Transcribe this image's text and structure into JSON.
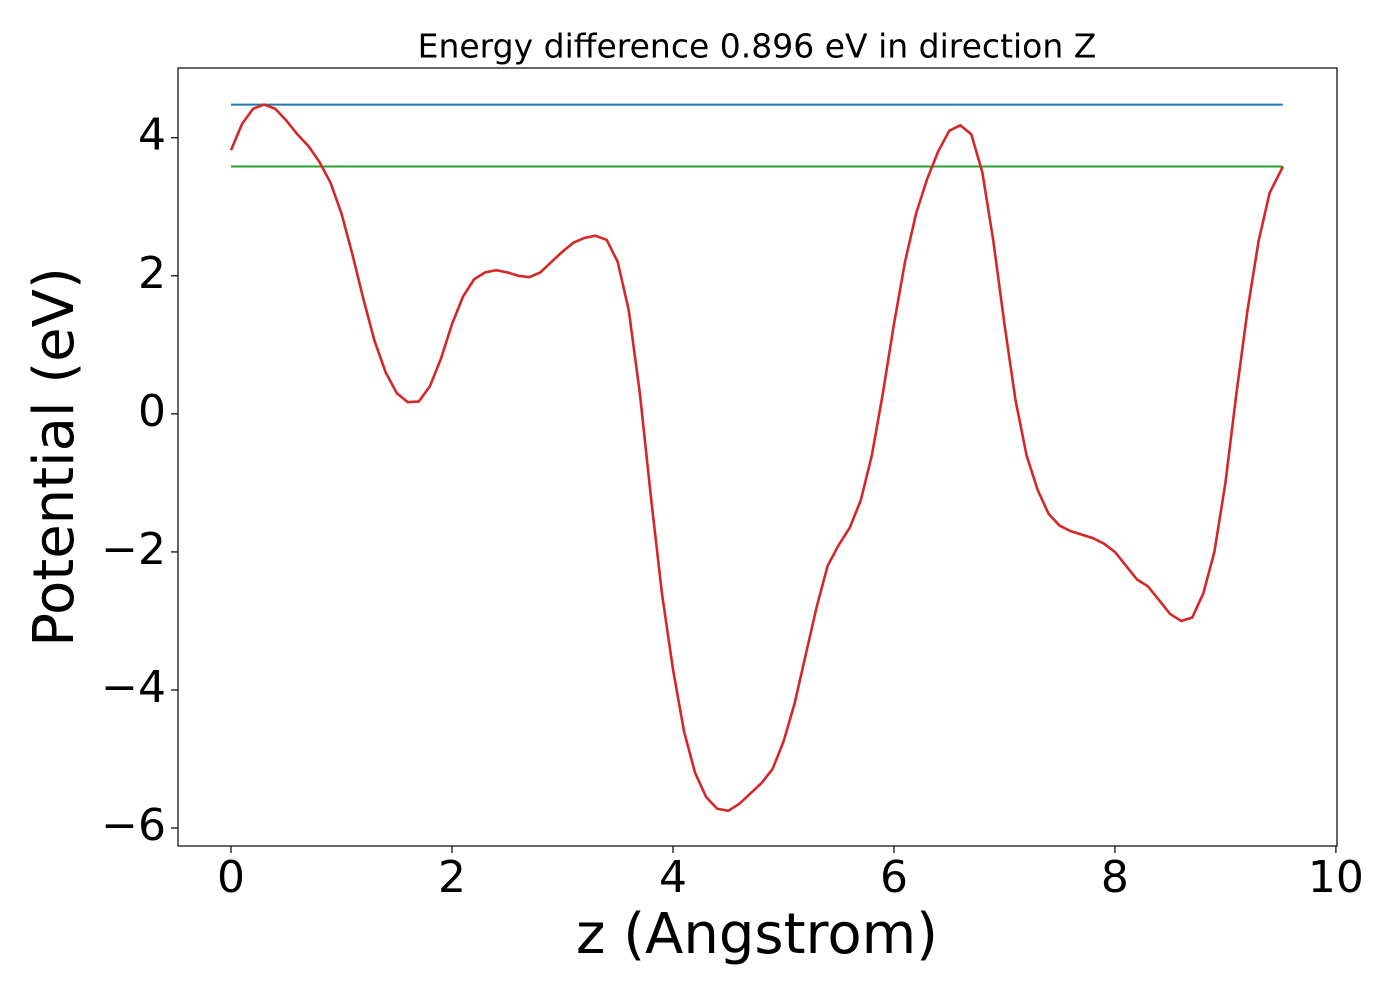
{
  "chart_data": {
    "type": "line",
    "title": "Energy difference 0.896 eV in direction Z",
    "x_label": "z (Angstrom)",
    "y_label": "Potential (eV)",
    "xlim": [
      -0.48,
      10.01
    ],
    "ylim": [
      -6.26,
      5.01
    ],
    "xticks": [
      0,
      2,
      4,
      6,
      8,
      10
    ],
    "yticks": [
      {
        "value": -6,
        "label": "−6"
      },
      {
        "value": -4,
        "label": "−4"
      },
      {
        "value": -2,
        "label": "−2"
      },
      0,
      2,
      4
    ],
    "series": [
      {
        "color": "#1f77b4",
        "x": [
          0,
          9.52
        ],
        "values": [
          4.48,
          4.48
        ]
      },
      {
        "color": "#2ca02c",
        "x": [
          0,
          9.52
        ],
        "values": [
          3.584,
          3.584
        ]
      },
      {
        "color": "#d62728",
        "x": [
          0,
          0.1,
          0.2,
          0.3,
          0.4,
          0.5,
          0.6,
          0.7,
          0.8,
          0.9,
          1.0,
          1.1,
          1.2,
          1.3,
          1.4,
          1.5,
          1.6,
          1.7,
          1.8,
          1.9,
          2.0,
          2.1,
          2.2,
          2.3,
          2.4,
          2.5,
          2.6,
          2.7,
          2.8,
          2.9,
          3.0,
          3.1,
          3.2,
          3.3,
          3.4,
          3.5,
          3.6,
          3.7,
          3.8,
          3.9,
          4.0,
          4.1,
          4.2,
          4.3,
          4.4,
          4.5,
          4.6,
          4.7,
          4.8,
          4.9,
          5.0,
          5.1,
          5.2,
          5.3,
          5.4,
          5.5,
          5.6,
          5.7,
          5.8,
          5.9,
          6.0,
          6.1,
          6.2,
          6.3,
          6.4,
          6.5,
          6.6,
          6.7,
          6.8,
          6.9,
          7.0,
          7.1,
          7.2,
          7.3,
          7.4,
          7.5,
          7.6,
          7.7,
          7.8,
          7.9,
          8.0,
          8.1,
          8.2,
          8.3,
          8.4,
          8.5,
          8.6,
          8.7,
          8.8,
          8.9,
          9.0,
          9.1,
          9.2,
          9.3,
          9.4,
          9.52
        ],
        "values": [
          3.82,
          4.2,
          4.42,
          4.48,
          4.42,
          4.25,
          4.05,
          3.88,
          3.65,
          3.35,
          2.9,
          2.3,
          1.65,
          1.05,
          0.6,
          0.3,
          0.17,
          0.18,
          0.4,
          0.8,
          1.3,
          1.7,
          1.95,
          2.05,
          2.08,
          2.05,
          2.0,
          1.98,
          2.05,
          2.2,
          2.35,
          2.48,
          2.55,
          2.58,
          2.52,
          2.2,
          1.5,
          0.3,
          -1.2,
          -2.6,
          -3.7,
          -4.6,
          -5.2,
          -5.55,
          -5.72,
          -5.75,
          -5.65,
          -5.5,
          -5.35,
          -5.15,
          -4.75,
          -4.2,
          -3.5,
          -2.8,
          -2.2,
          -1.9,
          -1.65,
          -1.25,
          -0.6,
          0.3,
          1.3,
          2.2,
          2.9,
          3.4,
          3.8,
          4.1,
          4.18,
          4.05,
          3.5,
          2.5,
          1.3,
          0.2,
          -0.6,
          -1.1,
          -1.45,
          -1.62,
          -1.7,
          -1.75,
          -1.8,
          -1.88,
          -2.0,
          -2.2,
          -2.4,
          -2.5,
          -2.7,
          -2.9,
          -3.0,
          -2.95,
          -2.6,
          -2.0,
          -1.0,
          0.3,
          1.5,
          2.5,
          3.2,
          3.58
        ]
      }
    ]
  }
}
